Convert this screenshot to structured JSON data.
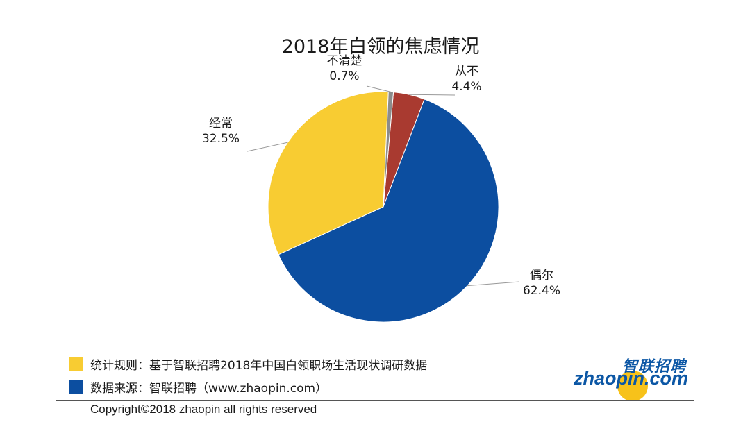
{
  "chart_data": {
    "type": "pie",
    "title": "2018年白领的焦虑情况",
    "slices": [
      {
        "label": "从不",
        "value": 4.4,
        "value_text": "4.4%",
        "color": "#a93a30"
      },
      {
        "label": "偶尔",
        "value": 62.4,
        "value_text": "62.4%",
        "color": "#0c4ea0"
      },
      {
        "label": "经常",
        "value": 32.5,
        "value_text": "32.5%",
        "color": "#f8cc32"
      },
      {
        "label": "不清楚",
        "value": 0.7,
        "value_text": "0.7%",
        "color": "#8c8c8c"
      }
    ]
  },
  "legend": {
    "rule_label": "统计规则：基于智联招聘2018年中国白领职场生活现状调研数据",
    "rule_color": "#f8cc32",
    "source_label": "数据来源：智联招聘（www.zhaopin.com）",
    "source_color": "#0c4ea0"
  },
  "logo": {
    "cn_text": "智联招聘",
    "en_text": "zhaopin.com"
  },
  "footer": {
    "copyright": "Copyright©2018 zhaopin all rights reserved"
  }
}
